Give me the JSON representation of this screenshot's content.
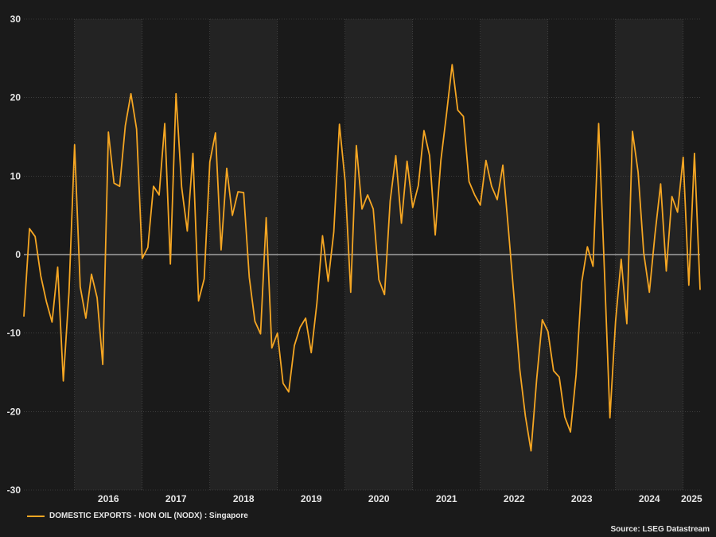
{
  "chart_data": {
    "type": "line",
    "ylim": [
      -30,
      30
    ],
    "yticks": [
      30,
      20,
      10,
      0,
      -10,
      -20,
      -30
    ],
    "year_labels": [
      "2016",
      "2017",
      "2018",
      "2019",
      "2020",
      "2021",
      "2022",
      "2023",
      "2024",
      "2025"
    ],
    "x_start": "2015-04",
    "x_end": "2025-04",
    "grid": true,
    "legend_position": "bottom-left",
    "colors": {
      "line": "#f5a623",
      "background": "#1a1a1a",
      "band": "#232323",
      "zero_line": "#e0e0e0",
      "grid": "#555555",
      "axis_text": "#e6e6e6"
    },
    "series": [
      {
        "name": "DOMESTIC EXPORTS - NON OIL (NODX) : Singapore",
        "x": [
          "2015-04",
          "2015-05",
          "2015-06",
          "2015-07",
          "2015-08",
          "2015-09",
          "2015-10",
          "2015-11",
          "2015-12",
          "2016-01",
          "2016-02",
          "2016-03",
          "2016-04",
          "2016-05",
          "2016-06",
          "2016-07",
          "2016-08",
          "2016-09",
          "2016-10",
          "2016-11",
          "2016-12",
          "2017-01",
          "2017-02",
          "2017-03",
          "2017-04",
          "2017-05",
          "2017-06",
          "2017-07",
          "2017-08",
          "2017-09",
          "2017-10",
          "2017-11",
          "2017-12",
          "2018-01",
          "2018-02",
          "2018-03",
          "2018-04",
          "2018-05",
          "2018-06",
          "2018-07",
          "2018-08",
          "2018-09",
          "2018-10",
          "2018-11",
          "2018-12",
          "2019-01",
          "2019-02",
          "2019-03",
          "2019-04",
          "2019-05",
          "2019-06",
          "2019-07",
          "2019-08",
          "2019-09",
          "2019-10",
          "2019-11",
          "2019-12",
          "2020-01",
          "2020-02",
          "2020-03",
          "2020-04",
          "2020-05",
          "2020-06",
          "2020-07",
          "2020-08",
          "2020-09",
          "2020-10",
          "2020-11",
          "2020-12",
          "2021-01",
          "2021-02",
          "2021-03",
          "2021-04",
          "2021-05",
          "2021-06",
          "2021-07",
          "2021-08",
          "2021-09",
          "2021-10",
          "2021-11",
          "2021-12",
          "2022-01",
          "2022-02",
          "2022-03",
          "2022-04",
          "2022-05",
          "2022-06",
          "2022-07",
          "2022-08",
          "2022-09",
          "2022-10",
          "2022-11",
          "2022-12",
          "2023-01",
          "2023-02",
          "2023-03",
          "2023-04",
          "2023-05",
          "2023-06",
          "2023-07",
          "2023-08",
          "2023-09",
          "2023-10",
          "2023-11",
          "2023-12",
          "2024-01",
          "2024-02",
          "2024-03",
          "2024-04",
          "2024-05",
          "2024-06",
          "2024-07",
          "2024-08",
          "2024-09",
          "2024-10",
          "2024-11",
          "2024-12",
          "2025-01",
          "2025-02",
          "2025-03",
          "2025-04"
        ],
        "values": [
          -7.9,
          3.3,
          2.3,
          -2.7,
          -6.0,
          -8.6,
          -1.6,
          -16.1,
          -4.9,
          14.0,
          -4.1,
          -8.1,
          -2.5,
          -5.5,
          -14.0,
          15.6,
          9.1,
          8.7,
          16.4,
          20.5,
          16.0,
          -0.5,
          0.9,
          8.7,
          7.6,
          16.7,
          -1.2,
          20.5,
          8.6,
          3.0,
          12.9,
          -5.9,
          -3.1,
          11.8,
          15.5,
          0.6,
          11.0,
          5.0,
          8.0,
          7.9,
          -2.9,
          -8.5,
          -10.1,
          4.7,
          -11.9,
          -10.0,
          -16.4,
          -17.5,
          -11.6,
          -9.3,
          -8.1,
          -12.5,
          -6.2,
          2.4,
          -3.4,
          2.9,
          16.6,
          9.4,
          -4.8,
          13.9,
          5.8,
          7.6,
          5.8,
          -3.2,
          -5.1,
          6.8,
          12.6,
          4.0,
          11.9,
          6.0,
          8.8,
          15.8,
          12.6,
          2.5,
          12.0,
          17.9,
          24.2,
          18.4,
          17.6,
          9.3,
          7.6,
          6.3,
          12.0,
          8.7,
          7.0,
          11.4,
          3.1,
          -5.6,
          -14.6,
          -20.6,
          -25.0,
          -15.9,
          -8.3,
          -9.8,
          -14.8,
          -15.6,
          -20.7,
          -22.6,
          -15.3,
          -3.5,
          1.0,
          -1.5,
          16.7,
          -1.6,
          -20.8,
          -8.5,
          -0.6,
          -8.8,
          15.7,
          10.5,
          0.2,
          -4.8,
          2.6,
          9.0,
          -2.1,
          7.4,
          5.4,
          12.4,
          -3.9,
          12.9,
          -4.5
        ]
      }
    ]
  },
  "legend": {
    "label": "DOMESTIC EXPORTS - NON OIL (NODX) : Singapore"
  },
  "source": "Source: LSEG Datastream"
}
